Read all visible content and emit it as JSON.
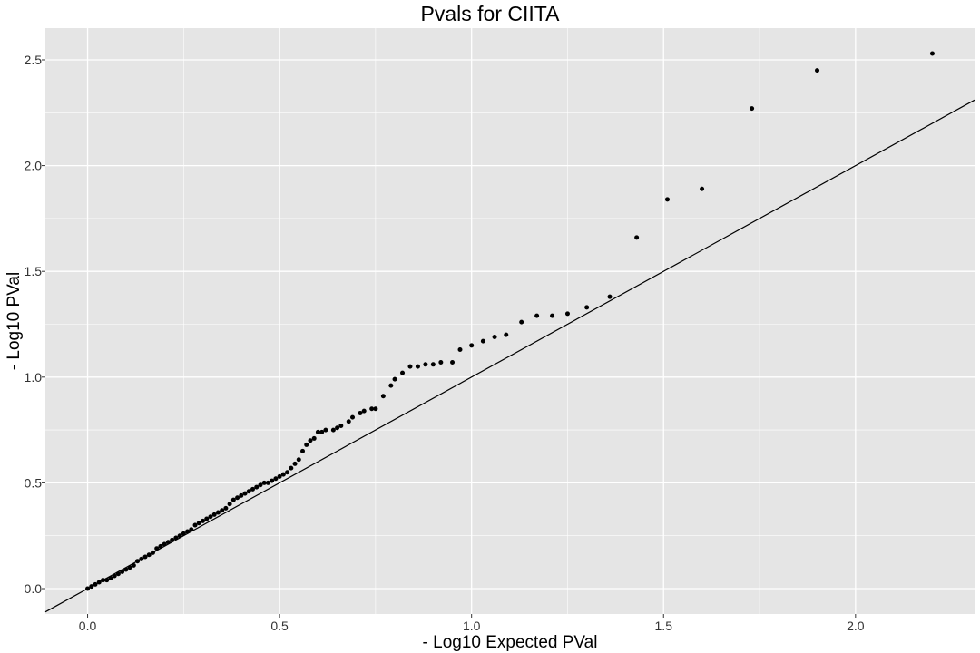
{
  "chart_data": {
    "type": "scatter",
    "title": "Pvals for CIITA",
    "xlabel": "- Log10 Expected PVal",
    "ylabel": "- Log10 PVal",
    "xlim": [
      -0.11,
      2.31
    ],
    "ylim": [
      -0.12,
      2.65
    ],
    "x_ticks": [
      "0.0",
      "0.5",
      "1.0",
      "1.5",
      "2.0"
    ],
    "y_ticks": [
      "0.0",
      "0.5",
      "1.0",
      "1.5",
      "2.0",
      "2.5"
    ],
    "grid": true,
    "reference_line": {
      "slope": 1,
      "intercept": 0
    },
    "colors": {
      "panel": "#e5e5e5",
      "grid": "#ffffff",
      "points": "#000000",
      "line": "#000000"
    },
    "points": [
      [
        2.2,
        2.53
      ],
      [
        1.9,
        2.45
      ],
      [
        1.73,
        2.27
      ],
      [
        1.6,
        1.89
      ],
      [
        1.51,
        1.84
      ],
      [
        1.43,
        1.66
      ],
      [
        1.36,
        1.38
      ],
      [
        1.3,
        1.33
      ],
      [
        1.25,
        1.3
      ],
      [
        1.21,
        1.29
      ],
      [
        1.17,
        1.29
      ],
      [
        1.13,
        1.26
      ],
      [
        1.09,
        1.2
      ],
      [
        1.06,
        1.19
      ],
      [
        1.03,
        1.17
      ],
      [
        1.0,
        1.15
      ],
      [
        0.97,
        1.13
      ],
      [
        0.95,
        1.07
      ],
      [
        0.92,
        1.07
      ],
      [
        0.9,
        1.06
      ],
      [
        0.88,
        1.06
      ],
      [
        0.86,
        1.05
      ],
      [
        0.84,
        1.05
      ],
      [
        0.82,
        1.02
      ],
      [
        0.8,
        0.99
      ],
      [
        0.79,
        0.96
      ],
      [
        0.77,
        0.91
      ],
      [
        0.75,
        0.85
      ],
      [
        0.74,
        0.85
      ],
      [
        0.72,
        0.84
      ],
      [
        0.71,
        0.83
      ],
      [
        0.69,
        0.81
      ],
      [
        0.68,
        0.79
      ],
      [
        0.66,
        0.77
      ],
      [
        0.65,
        0.76
      ],
      [
        0.64,
        0.75
      ],
      [
        0.62,
        0.75
      ],
      [
        0.61,
        0.74
      ],
      [
        0.6,
        0.74
      ],
      [
        0.59,
        0.71
      ],
      [
        0.58,
        0.7
      ],
      [
        0.57,
        0.68
      ],
      [
        0.56,
        0.65
      ],
      [
        0.55,
        0.61
      ],
      [
        0.54,
        0.59
      ],
      [
        0.53,
        0.57
      ],
      [
        0.52,
        0.55
      ],
      [
        0.51,
        0.54
      ],
      [
        0.5,
        0.53
      ],
      [
        0.49,
        0.52
      ],
      [
        0.48,
        0.51
      ],
      [
        0.47,
        0.5
      ],
      [
        0.46,
        0.5
      ],
      [
        0.45,
        0.49
      ],
      [
        0.44,
        0.48
      ],
      [
        0.43,
        0.47
      ],
      [
        0.42,
        0.46
      ],
      [
        0.41,
        0.45
      ],
      [
        0.4,
        0.44
      ],
      [
        0.39,
        0.43
      ],
      [
        0.38,
        0.42
      ],
      [
        0.37,
        0.4
      ],
      [
        0.36,
        0.38
      ],
      [
        0.35,
        0.37
      ],
      [
        0.34,
        0.36
      ],
      [
        0.33,
        0.35
      ],
      [
        0.32,
        0.34
      ],
      [
        0.31,
        0.33
      ],
      [
        0.3,
        0.32
      ],
      [
        0.29,
        0.31
      ],
      [
        0.28,
        0.3
      ],
      [
        0.27,
        0.28
      ],
      [
        0.26,
        0.27
      ],
      [
        0.25,
        0.26
      ],
      [
        0.24,
        0.25
      ],
      [
        0.23,
        0.24
      ],
      [
        0.22,
        0.23
      ],
      [
        0.21,
        0.22
      ],
      [
        0.2,
        0.21
      ],
      [
        0.19,
        0.2
      ],
      [
        0.18,
        0.19
      ],
      [
        0.17,
        0.17
      ],
      [
        0.16,
        0.16
      ],
      [
        0.15,
        0.15
      ],
      [
        0.14,
        0.14
      ],
      [
        0.13,
        0.13
      ],
      [
        0.12,
        0.11
      ],
      [
        0.11,
        0.1
      ],
      [
        0.1,
        0.09
      ],
      [
        0.09,
        0.08
      ],
      [
        0.08,
        0.07
      ],
      [
        0.07,
        0.06
      ],
      [
        0.06,
        0.05
      ],
      [
        0.05,
        0.04
      ],
      [
        0.04,
        0.04
      ],
      [
        0.03,
        0.03
      ],
      [
        0.02,
        0.02
      ],
      [
        0.01,
        0.01
      ],
      [
        0.0,
        0.0
      ]
    ]
  }
}
